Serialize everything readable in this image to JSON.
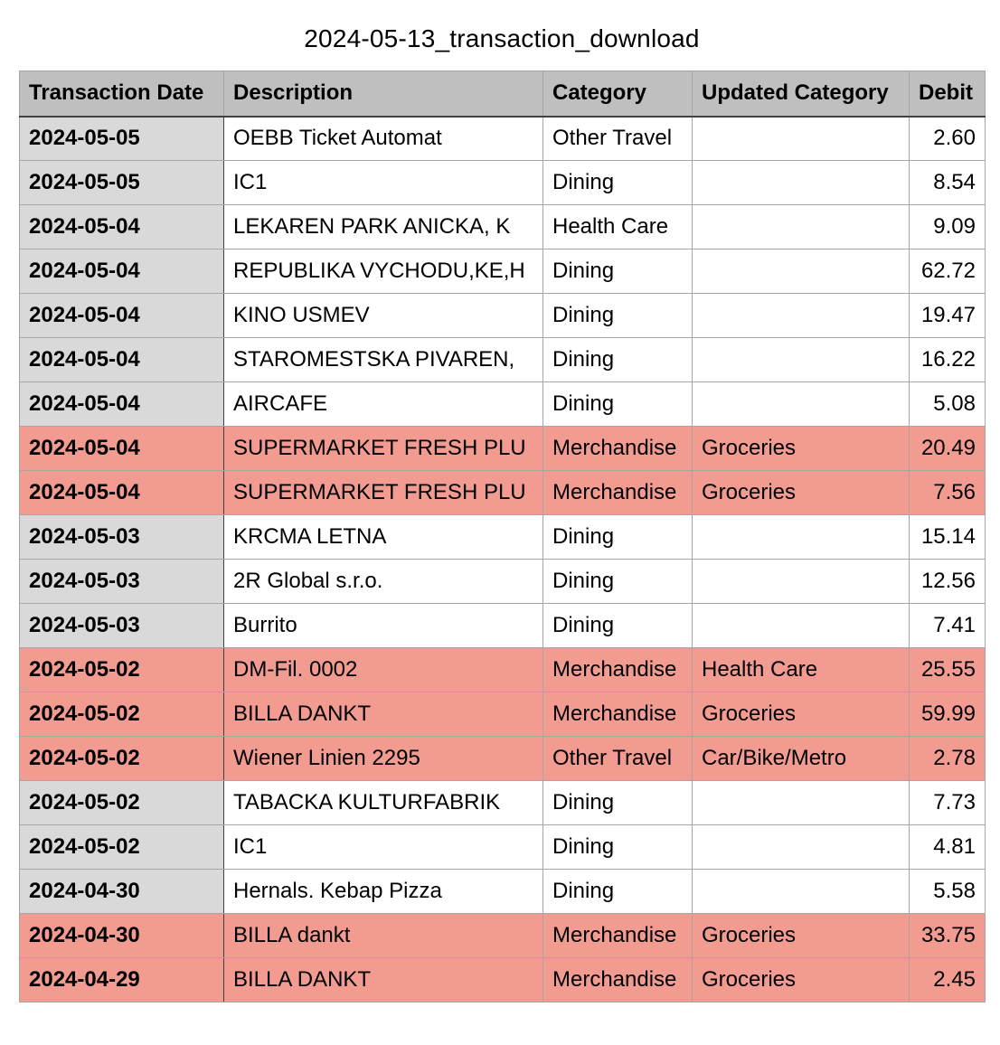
{
  "title": "2024-05-13_transaction_download",
  "columns": [
    "Transaction Date",
    "Description",
    "Category",
    "Updated Category",
    "Debit"
  ],
  "rows": [
    {
      "date": "2024-05-05",
      "description": "OEBB Ticket Automat",
      "category": "Other Travel",
      "updated": "",
      "debit": "2.60",
      "highlight": false
    },
    {
      "date": "2024-05-05",
      "description": "IC1",
      "category": "Dining",
      "updated": "",
      "debit": "8.54",
      "highlight": false
    },
    {
      "date": "2024-05-04",
      "description": "LEKAREN PARK ANICKA, K",
      "category": "Health Care",
      "updated": "",
      "debit": "9.09",
      "highlight": false
    },
    {
      "date": "2024-05-04",
      "description": "REPUBLIKA VYCHODU,KE,H",
      "category": "Dining",
      "updated": "",
      "debit": "62.72",
      "highlight": false
    },
    {
      "date": "2024-05-04",
      "description": "KINO USMEV",
      "category": "Dining",
      "updated": "",
      "debit": "19.47",
      "highlight": false
    },
    {
      "date": "2024-05-04",
      "description": "STAROMESTSKA PIVAREN,",
      "category": "Dining",
      "updated": "",
      "debit": "16.22",
      "highlight": false
    },
    {
      "date": "2024-05-04",
      "description": "AIRCAFE",
      "category": "Dining",
      "updated": "",
      "debit": "5.08",
      "highlight": false
    },
    {
      "date": "2024-05-04",
      "description": "SUPERMARKET FRESH PLU",
      "category": "Merchandise",
      "updated": "Groceries",
      "debit": "20.49",
      "highlight": true
    },
    {
      "date": "2024-05-04",
      "description": "SUPERMARKET FRESH PLU",
      "category": "Merchandise",
      "updated": "Groceries",
      "debit": "7.56",
      "highlight": true
    },
    {
      "date": "2024-05-03",
      "description": "KRCMA LETNA",
      "category": "Dining",
      "updated": "",
      "debit": "15.14",
      "highlight": false
    },
    {
      "date": "2024-05-03",
      "description": "2R Global s.r.o.",
      "category": "Dining",
      "updated": "",
      "debit": "12.56",
      "highlight": false
    },
    {
      "date": "2024-05-03",
      "description": "Burrito",
      "category": "Dining",
      "updated": "",
      "debit": "7.41",
      "highlight": false
    },
    {
      "date": "2024-05-02",
      "description": "DM-Fil. 0002",
      "category": "Merchandise",
      "updated": "Health Care",
      "debit": "25.55",
      "highlight": true
    },
    {
      "date": "2024-05-02",
      "description": "BILLA DANKT",
      "category": "Merchandise",
      "updated": "Groceries",
      "debit": "59.99",
      "highlight": true
    },
    {
      "date": "2024-05-02",
      "description": "Wiener Linien 2295",
      "category": "Other Travel",
      "updated": "Car/Bike/Metro",
      "debit": "2.78",
      "highlight": true
    },
    {
      "date": "2024-05-02",
      "description": "TABACKA KULTURFABRIK",
      "category": "Dining",
      "updated": "",
      "debit": "7.73",
      "highlight": false
    },
    {
      "date": "2024-05-02",
      "description": "IC1",
      "category": "Dining",
      "updated": "",
      "debit": "4.81",
      "highlight": false
    },
    {
      "date": "2024-04-30",
      "description": "Hernals. Kebap Pizza",
      "category": "Dining",
      "updated": "",
      "debit": "5.58",
      "highlight": false
    },
    {
      "date": "2024-04-30",
      "description": "BILLA dankt",
      "category": "Merchandise",
      "updated": "Groceries",
      "debit": "33.75",
      "highlight": true
    },
    {
      "date": "2024-04-29",
      "description": "BILLA DANKT",
      "category": "Merchandise",
      "updated": "Groceries",
      "debit": "2.45",
      "highlight": true
    }
  ],
  "colors": {
    "header_bg": "#bfbfbf",
    "date_col_bg": "#d9d9d9",
    "highlight_bg": "#f19b91",
    "gridline": "#a6a6a6"
  }
}
